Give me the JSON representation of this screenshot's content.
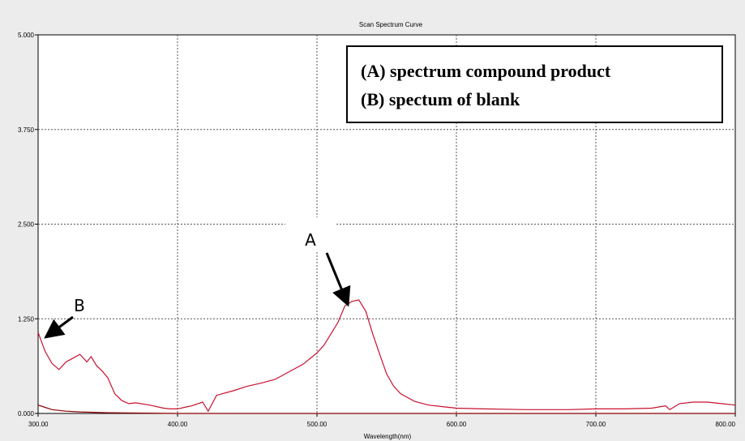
{
  "chart_data": {
    "type": "line",
    "title": "Scan Spectrum Curve",
    "xlabel": "Wavelength(nm)",
    "ylabel": "",
    "xlim": [
      300,
      800
    ],
    "ylim": [
      0,
      5
    ],
    "x_ticks": [
      "300.00",
      "400.00",
      "500.00",
      "600.00",
      "700.00",
      "800.00"
    ],
    "y_ticks": [
      "0.000",
      "1.250",
      "2.500",
      "3.750",
      "5.000"
    ],
    "grid": true,
    "legend_lines": [
      "(A) spectrum compound product",
      "(B) spectum of blank"
    ],
    "legend_position": "top-right",
    "series": [
      {
        "color": "#c8102e",
        "x": [
          300,
          305,
          310,
          315,
          320,
          325,
          330,
          335,
          338,
          342,
          346,
          350,
          355,
          360,
          365,
          370,
          380,
          390,
          395,
          400,
          405,
          410,
          418,
          422,
          428,
          440,
          450,
          460,
          470,
          480,
          490,
          500,
          505,
          510,
          515,
          520,
          525,
          530,
          535,
          540,
          545,
          550,
          555,
          560,
          570,
          580,
          590,
          600,
          620,
          650,
          680,
          700,
          720,
          740,
          750,
          753,
          760,
          770,
          780,
          790,
          800
        ],
        "y": [
          1.07,
          0.82,
          0.66,
          0.58,
          0.68,
          0.73,
          0.78,
          0.68,
          0.75,
          0.63,
          0.56,
          0.47,
          0.26,
          0.17,
          0.13,
          0.14,
          0.11,
          0.07,
          0.06,
          0.06,
          0.08,
          0.1,
          0.15,
          0.03,
          0.24,
          0.3,
          0.36,
          0.4,
          0.45,
          0.55,
          0.65,
          0.8,
          0.9,
          1.05,
          1.2,
          1.42,
          1.48,
          1.5,
          1.35,
          1.05,
          0.78,
          0.52,
          0.36,
          0.26,
          0.16,
          0.11,
          0.09,
          0.07,
          0.06,
          0.05,
          0.05,
          0.06,
          0.06,
          0.07,
          0.1,
          0.05,
          0.13,
          0.15,
          0.15,
          0.13,
          0.11
        ]
      },
      {
        "color": "#8b0000",
        "x": [
          300,
          305,
          310,
          320,
          330,
          340,
          350,
          370,
          400,
          450,
          500,
          600,
          700,
          800
        ],
        "y": [
          0.11,
          0.08,
          0.05,
          0.03,
          0.02,
          0.015,
          0.01,
          0.005,
          0.0,
          0.0,
          0.0,
          0.0,
          0.0,
          0.0
        ]
      }
    ],
    "annotations": [
      {
        "label": "A",
        "x": 518,
        "y": 1.45
      },
      {
        "label": "B",
        "x": 304,
        "y": 0.95
      }
    ]
  }
}
